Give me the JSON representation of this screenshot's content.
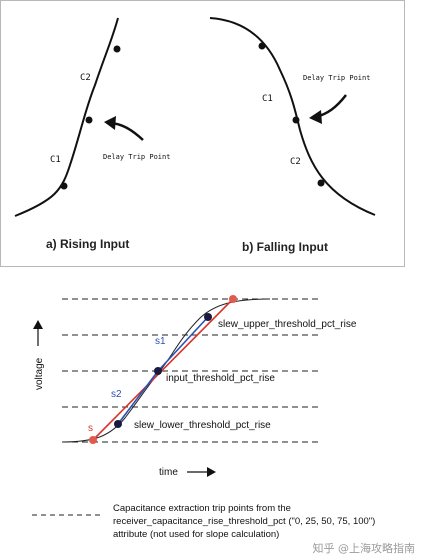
{
  "top_diagram": {
    "caption_a": "a) Rising Input",
    "caption_b": "b) Falling Input",
    "rising": {
      "c1_label": "C1",
      "c2_label": "C2",
      "trip_label": "Delay Trip Point"
    },
    "falling": {
      "c1_label": "C1",
      "c2_label": "C2",
      "trip_label": "Delay Trip Point"
    }
  },
  "bottom_diagram": {
    "y_axis_label": "voltage",
    "x_axis_label": "time",
    "labels": {
      "upper": "slew_upper_threshold_pct_rise",
      "mid": "input_threshold_pct_rise",
      "lower": "slew_lower_threshold_pct_rise",
      "s": "s",
      "s1": "s1",
      "s2": "s2"
    },
    "legend": {
      "line1": "Capacitance extraction trip points from the",
      "line2": "receiver_capacitance_rise_threshold_pct (\"0, 25, 50, 75, 100\")",
      "line3": "attribute (not used for slope calculation)"
    },
    "colors": {
      "curve": "#222222",
      "red_line": "#d9342b",
      "blue_line": "#2b4fb5",
      "red_point": "#e05a4e",
      "dark_point": "#1a1a40"
    }
  },
  "watermark": "知乎 @上海攻略指南"
}
